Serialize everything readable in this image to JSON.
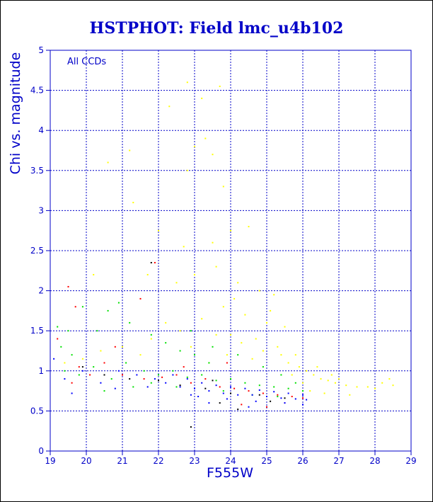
{
  "chart_data": {
    "type": "scatter",
    "title": "HSTPHOT: Field lmc_u4b102",
    "xlabel": "F555W",
    "ylabel": "Chi vs. magnitude",
    "annotation": "All CCDs",
    "xlim": [
      19,
      29
    ],
    "ylim": [
      0,
      5
    ],
    "xticks": [
      19,
      20,
      21,
      22,
      23,
      24,
      25,
      26,
      27,
      28,
      29
    ],
    "yticks": [
      0,
      0.5,
      1,
      1.5,
      2,
      2.5,
      3,
      3.5,
      4,
      4.5,
      5
    ],
    "grid": true,
    "colors": {
      "axis": "#0000c8",
      "grid": "#0000c8",
      "text": "#0000c8",
      "border": "#000000"
    },
    "series": [
      {
        "color": "#ffff00",
        "points": [
          [
            22.8,
            4.6
          ],
          [
            23.2,
            4.4
          ],
          [
            23.7,
            4.55
          ],
          [
            22.3,
            4.3
          ],
          [
            23.3,
            3.9
          ],
          [
            23.0,
            3.8
          ],
          [
            23.5,
            3.7
          ],
          [
            22.8,
            3.5
          ],
          [
            23.8,
            3.3
          ],
          [
            21.2,
            3.75
          ],
          [
            20.6,
            3.6
          ],
          [
            21.3,
            3.1
          ],
          [
            22.0,
            2.75
          ],
          [
            22.7,
            2.55
          ],
          [
            23.5,
            2.6
          ],
          [
            24.0,
            2.75
          ],
          [
            24.5,
            2.8
          ],
          [
            21.7,
            2.2
          ],
          [
            20.2,
            2.2
          ],
          [
            22.5,
            2.1
          ],
          [
            23.0,
            2.2
          ],
          [
            23.6,
            2.3
          ],
          [
            24.2,
            2.1
          ],
          [
            24.8,
            2.0
          ],
          [
            25.2,
            1.95
          ],
          [
            23.8,
            1.8
          ],
          [
            24.4,
            1.7
          ],
          [
            25.0,
            1.6
          ],
          [
            25.5,
            1.55
          ],
          [
            23.2,
            1.65
          ],
          [
            22.6,
            1.5
          ],
          [
            24.0,
            1.45
          ],
          [
            24.7,
            1.4
          ],
          [
            25.3,
            1.3
          ],
          [
            25.8,
            1.2
          ],
          [
            26.1,
            1.0
          ],
          [
            26.3,
            0.95
          ],
          [
            26.5,
            0.9
          ],
          [
            26.7,
            0.88
          ],
          [
            26.9,
            0.85
          ],
          [
            27.2,
            0.82
          ],
          [
            27.5,
            0.8
          ],
          [
            27.8,
            0.8
          ],
          [
            28.0,
            0.78
          ],
          [
            28.2,
            0.85
          ],
          [
            28.4,
            0.9
          ],
          [
            28.5,
            0.82
          ],
          [
            26.4,
            1.05
          ],
          [
            26.8,
            0.95
          ],
          [
            27.0,
            0.9
          ],
          [
            25.6,
            1.1
          ],
          [
            25.9,
            1.05
          ],
          [
            25.4,
            1.2
          ],
          [
            24.9,
            1.25
          ],
          [
            24.3,
            1.35
          ],
          [
            23.9,
            1.2
          ],
          [
            23.4,
            1.1
          ],
          [
            22.9,
            1.3
          ],
          [
            21.8,
            1.4
          ],
          [
            21.5,
            1.2
          ],
          [
            21.0,
            1.3
          ],
          [
            20.4,
            1.25
          ],
          [
            19.9,
            1.15
          ],
          [
            19.4,
            1.1
          ],
          [
            26.2,
            0.75
          ],
          [
            26.6,
            0.72
          ],
          [
            27.3,
            0.7
          ],
          [
            25.7,
            0.95
          ],
          [
            26.0,
            0.85
          ],
          [
            24.6,
            1.15
          ],
          [
            23.6,
            1.45
          ],
          [
            22.2,
            1.6
          ],
          [
            24.1,
            1.9
          ],
          [
            25.1,
            1.75
          ]
        ]
      },
      {
        "color": "#00e000",
        "points": [
          [
            19.2,
            1.55
          ],
          [
            19.5,
            1.5
          ],
          [
            19.3,
            1.3
          ],
          [
            19.6,
            1.2
          ],
          [
            19.9,
            1.8
          ],
          [
            20.6,
            1.75
          ],
          [
            20.9,
            1.85
          ],
          [
            20.3,
            1.5
          ],
          [
            21.2,
            1.6
          ],
          [
            21.8,
            1.45
          ],
          [
            22.2,
            1.35
          ],
          [
            22.6,
            1.25
          ],
          [
            23.0,
            1.2
          ],
          [
            23.4,
            1.1
          ],
          [
            19.4,
            1.0
          ],
          [
            19.8,
            0.95
          ],
          [
            20.2,
            1.05
          ],
          [
            20.7,
            0.9
          ],
          [
            21.1,
            1.1
          ],
          [
            21.6,
            1.0
          ],
          [
            22.0,
            0.95
          ],
          [
            22.4,
            1.0
          ],
          [
            22.8,
            0.92
          ],
          [
            23.2,
            0.95
          ],
          [
            23.6,
            0.88
          ],
          [
            24.0,
            0.9
          ],
          [
            24.4,
            0.85
          ],
          [
            24.8,
            0.82
          ],
          [
            25.2,
            0.8
          ],
          [
            25.6,
            0.78
          ],
          [
            26.0,
            0.75
          ],
          [
            22.9,
            1.5
          ],
          [
            23.5,
            1.3
          ],
          [
            24.2,
            1.2
          ],
          [
            24.9,
            1.05
          ],
          [
            25.4,
            0.95
          ],
          [
            25.8,
            0.85
          ],
          [
            23.8,
            0.75
          ],
          [
            24.6,
            0.7
          ],
          [
            25.3,
            0.68
          ],
          [
            22.5,
            0.8
          ],
          [
            21.8,
            0.85
          ],
          [
            21.3,
            0.8
          ],
          [
            20.5,
            0.75
          ]
        ]
      },
      {
        "color": "#ff0000",
        "points": [
          [
            19.5,
            2.05
          ],
          [
            19.7,
            1.8
          ],
          [
            19.2,
            1.4
          ],
          [
            19.8,
            1.05
          ],
          [
            20.1,
            0.95
          ],
          [
            20.5,
            1.1
          ],
          [
            21.0,
            0.95
          ],
          [
            21.5,
            1.9
          ],
          [
            21.6,
            0.9
          ],
          [
            22.1,
            0.92
          ],
          [
            22.5,
            0.95
          ],
          [
            22.9,
            0.85
          ],
          [
            23.3,
            0.9
          ],
          [
            23.7,
            0.8
          ],
          [
            24.1,
            0.78
          ],
          [
            24.5,
            0.75
          ],
          [
            24.9,
            0.72
          ],
          [
            25.3,
            0.7
          ],
          [
            25.7,
            0.68
          ],
          [
            26.0,
            0.66
          ],
          [
            24.3,
            0.58
          ],
          [
            25.0,
            0.55
          ],
          [
            25.5,
            0.6
          ],
          [
            23.9,
            1.1
          ],
          [
            22.7,
            1.05
          ],
          [
            21.9,
            2.35
          ],
          [
            20.8,
            1.3
          ],
          [
            19.6,
            0.85
          ]
        ]
      },
      {
        "color": "#0000ff",
        "points": [
          [
            19.1,
            1.15
          ],
          [
            19.4,
            0.9
          ],
          [
            19.9,
            1.0
          ],
          [
            20.4,
            0.85
          ],
          [
            20.9,
            1.0
          ],
          [
            21.4,
            0.95
          ],
          [
            21.9,
            0.9
          ],
          [
            22.2,
            0.85
          ],
          [
            22.6,
            0.8
          ],
          [
            23.0,
            0.78
          ],
          [
            23.4,
            0.75
          ],
          [
            23.8,
            0.72
          ],
          [
            24.2,
            0.7
          ],
          [
            24.6,
            0.7
          ],
          [
            25.0,
            0.68
          ],
          [
            25.4,
            0.66
          ],
          [
            25.8,
            0.65
          ],
          [
            26.1,
            0.64
          ],
          [
            22.4,
            0.95
          ],
          [
            22.8,
            0.9
          ],
          [
            23.2,
            0.85
          ],
          [
            23.6,
            0.82
          ],
          [
            24.0,
            0.8
          ],
          [
            24.4,
            0.78
          ],
          [
            24.8,
            0.76
          ],
          [
            25.2,
            0.74
          ],
          [
            25.6,
            0.72
          ],
          [
            26.0,
            0.7
          ],
          [
            23.1,
            0.68
          ],
          [
            23.9,
            0.65
          ],
          [
            24.7,
            0.62
          ],
          [
            25.5,
            0.6
          ],
          [
            26.0,
            0.58
          ],
          [
            24.5,
            0.55
          ],
          [
            23.4,
            0.6
          ],
          [
            22.9,
            0.7
          ],
          [
            21.7,
            0.8
          ],
          [
            20.8,
            0.78
          ],
          [
            19.6,
            0.72
          ]
        ]
      },
      {
        "color": "#000000",
        "points": [
          [
            21.8,
            2.35
          ],
          [
            19.9,
            1.05
          ],
          [
            20.5,
            0.95
          ],
          [
            21.2,
            0.9
          ],
          [
            22.0,
            0.88
          ],
          [
            22.6,
            0.82
          ],
          [
            23.3,
            0.78
          ],
          [
            24.0,
            0.72
          ],
          [
            24.8,
            0.7
          ],
          [
            25.5,
            0.66
          ],
          [
            23.7,
            0.6
          ],
          [
            24.2,
            0.52
          ],
          [
            22.9,
            0.3
          ],
          [
            23.5,
            0.88
          ],
          [
            25.1,
            0.62
          ]
        ]
      }
    ]
  }
}
